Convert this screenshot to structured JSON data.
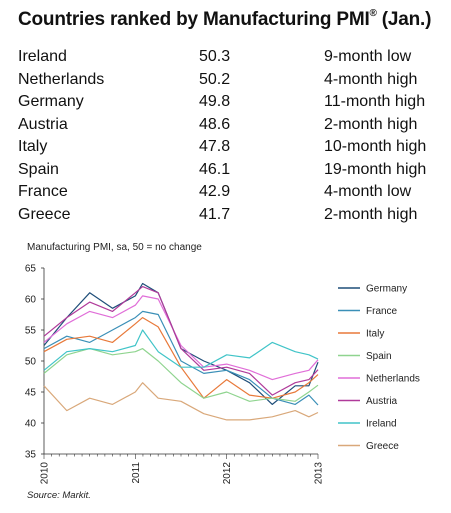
{
  "title": "Countries ranked by Manufacturing PMI",
  "title_mark": "®",
  "title_suffix": " (Jan.)",
  "ranking": [
    {
      "country": "Ireland",
      "pmi": "50.3",
      "note": "9-month low"
    },
    {
      "country": "Netherlands",
      "pmi": "50.2",
      "note": "4-month high"
    },
    {
      "country": "Germany",
      "pmi": "49.8",
      "note": "11-month high"
    },
    {
      "country": "Austria",
      "pmi": "48.6",
      "note": "2-month high"
    },
    {
      "country": "Italy",
      "pmi": "47.8",
      "note": "10-month high"
    },
    {
      "country": "Spain",
      "pmi": "46.1",
      "note": "19-month high"
    },
    {
      "country": "France",
      "pmi": "42.9",
      "note": "4-month low"
    },
    {
      "country": "Greece",
      "pmi": "41.7",
      "note": "2-month high"
    }
  ],
  "chart_subtitle": "Manufacturing PMI, sa, 50 = no change",
  "source": "Source: Markit.",
  "chart_data": {
    "type": "line",
    "ylim": [
      35,
      65
    ],
    "yticks": [
      35,
      40,
      45,
      50,
      55,
      60,
      65
    ],
    "xlim": [
      2010.0,
      2013.0
    ],
    "xticks": [
      2010,
      2011,
      2012,
      2013
    ],
    "xtick_labels": [
      "2010",
      "2011",
      "2012",
      "2013"
    ],
    "grid": false,
    "legend_placement": "right",
    "series": [
      {
        "name": "Germany",
        "color": "#1f4e79",
        "x": [
          2010.0,
          2010.25,
          2010.5,
          2010.75,
          2011.0,
          2011.08,
          2011.25,
          2011.5,
          2011.75,
          2012.0,
          2012.25,
          2012.5,
          2012.75,
          2012.9,
          2013.0
        ],
        "y": [
          52.5,
          57.0,
          61.0,
          58.5,
          60.5,
          62.5,
          61.0,
          52.0,
          50.0,
          48.5,
          46.5,
          43.0,
          46.0,
          46.0,
          49.8
        ]
      },
      {
        "name": "France",
        "color": "#3a8fb7",
        "x": [
          2010.0,
          2010.25,
          2010.5,
          2010.75,
          2011.0,
          2011.08,
          2011.25,
          2011.5,
          2011.75,
          2012.0,
          2012.25,
          2012.5,
          2012.75,
          2012.9,
          2013.0
        ],
        "y": [
          52.0,
          54.0,
          53.0,
          55.0,
          57.0,
          58.0,
          57.5,
          50.0,
          48.0,
          48.5,
          47.0,
          44.0,
          43.0,
          44.5,
          42.9
        ]
      },
      {
        "name": "Italy",
        "color": "#e8793a",
        "x": [
          2010.0,
          2010.25,
          2010.5,
          2010.75,
          2011.0,
          2011.08,
          2011.25,
          2011.5,
          2011.75,
          2012.0,
          2012.25,
          2012.5,
          2012.75,
          2012.9,
          2013.0
        ],
        "y": [
          51.5,
          53.5,
          54.0,
          53.0,
          56.0,
          57.0,
          55.5,
          49.0,
          44.0,
          47.0,
          44.5,
          44.0,
          45.0,
          46.5,
          47.8
        ]
      },
      {
        "name": "Spain",
        "color": "#8fd48f",
        "x": [
          2010.0,
          2010.25,
          2010.5,
          2010.75,
          2011.0,
          2011.08,
          2011.25,
          2011.5,
          2011.75,
          2012.0,
          2012.25,
          2012.5,
          2012.75,
          2012.9,
          2013.0
        ],
        "y": [
          48.0,
          51.0,
          52.0,
          51.0,
          51.5,
          52.0,
          50.0,
          46.5,
          44.0,
          45.0,
          43.5,
          44.0,
          43.5,
          45.0,
          46.1
        ]
      },
      {
        "name": "Netherlands",
        "color": "#e06ed8",
        "x": [
          2010.0,
          2010.25,
          2010.5,
          2010.75,
          2011.0,
          2011.08,
          2011.25,
          2011.5,
          2011.75,
          2012.0,
          2012.25,
          2012.5,
          2012.75,
          2012.9,
          2013.0
        ],
        "y": [
          53.0,
          56.0,
          58.0,
          57.0,
          59.0,
          60.5,
          60.0,
          52.5,
          49.0,
          49.5,
          48.5,
          47.0,
          48.0,
          48.5,
          50.2
        ]
      },
      {
        "name": "Austria",
        "color": "#b03a9a",
        "x": [
          2010.0,
          2010.25,
          2010.5,
          2010.75,
          2011.0,
          2011.08,
          2011.25,
          2011.5,
          2011.75,
          2012.0,
          2012.25,
          2012.5,
          2012.75,
          2012.9,
          2013.0
        ],
        "y": [
          54.0,
          57.0,
          59.5,
          58.0,
          61.0,
          62.0,
          61.0,
          52.0,
          48.5,
          49.0,
          48.0,
          44.5,
          46.5,
          47.0,
          48.6
        ]
      },
      {
        "name": "Ireland",
        "color": "#40c4c8",
        "x": [
          2010.0,
          2010.25,
          2010.5,
          2010.75,
          2011.0,
          2011.08,
          2011.25,
          2011.5,
          2011.75,
          2012.0,
          2012.25,
          2012.5,
          2012.75,
          2012.9,
          2013.0
        ],
        "y": [
          48.5,
          51.5,
          52.0,
          51.5,
          52.5,
          55.0,
          51.5,
          49.0,
          49.0,
          51.0,
          50.5,
          53.0,
          51.5,
          51.0,
          50.3
        ]
      },
      {
        "name": "Greece",
        "color": "#d9a87a",
        "x": [
          2010.0,
          2010.25,
          2010.5,
          2010.75,
          2011.0,
          2011.08,
          2011.25,
          2011.5,
          2011.75,
          2012.0,
          2012.25,
          2012.5,
          2012.75,
          2012.9,
          2013.0
        ],
        "y": [
          46.0,
          42.0,
          44.0,
          43.0,
          45.0,
          46.5,
          44.0,
          43.5,
          41.5,
          40.5,
          40.5,
          41.0,
          42.0,
          41.0,
          41.7
        ]
      }
    ]
  }
}
